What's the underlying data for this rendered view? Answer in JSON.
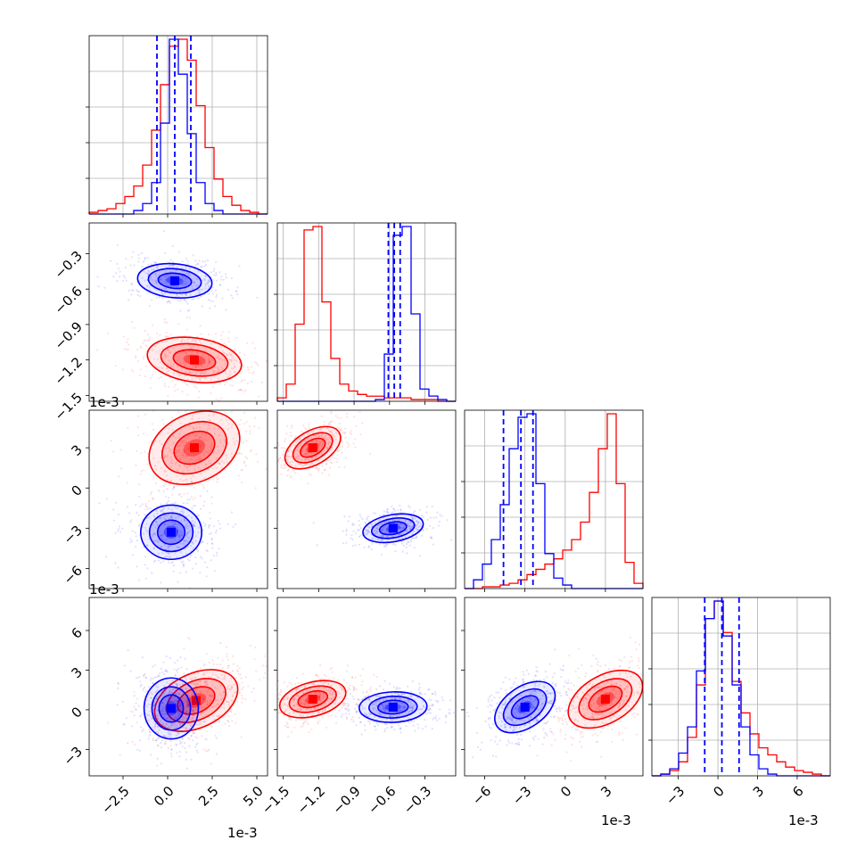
{
  "colors": {
    "red": "#ff0000",
    "blue": "#0000ff",
    "grid": "#b0b0b0"
  },
  "offset_labels": {
    "p2_y": "1e-3",
    "p3_y": "1e-3",
    "x0": "1e-3",
    "x2": "1e-3",
    "x3": "1e-3"
  },
  "chart_data": {
    "type": "corner",
    "title": "",
    "parameters": 4,
    "axes": [
      {
        "id": "p0",
        "scale_label": "1e-3",
        "lim": [
          -4.4,
          5.6
        ],
        "ticks": [
          -2.5,
          0.0,
          2.5,
          5.0
        ],
        "tick_labels": [
          "−2.5",
          "0.0",
          "2.5",
          "5.0"
        ]
      },
      {
        "id": "p1",
        "scale_label": "",
        "lim": [
          -1.55,
          -0.04
        ],
        "ticks": [
          -1.5,
          -1.2,
          -0.9,
          -0.6,
          -0.3
        ],
        "tick_labels": [
          "−1.5",
          "−1.2",
          "−0.9",
          "−0.6",
          "−0.3"
        ]
      },
      {
        "id": "p2",
        "scale_label": "1e-3",
        "lim": [
          -7.5,
          5.8
        ],
        "ticks": [
          -6,
          -3,
          0,
          3
        ],
        "tick_labels": [
          "−6",
          "−3",
          "0",
          "3"
        ]
      },
      {
        "id": "p3",
        "scale_label": "1e-3",
        "lim": [
          -5.0,
          8.5
        ],
        "ticks": [
          -3,
          0,
          3,
          6
        ],
        "tick_labels": [
          "−3",
          "0",
          "3",
          "6"
        ]
      }
    ],
    "series": [
      {
        "color": "#ff0000",
        "hist": [
          {
            "param": 0,
            "edges": [
              -4.4,
              5.6
            ],
            "counts": [
              1,
              2,
              3,
              6,
              10,
              16,
              28,
              48,
              74,
              96,
              100,
              88,
              62,
              38,
              20,
              10,
              5,
              2,
              1,
              0
            ]
          },
          {
            "param": 1,
            "edges": [
              -1.55,
              -0.04
            ],
            "counts": [
              2,
              10,
              45,
              100,
              102,
              58,
              25,
              10,
              6,
              4,
              3,
              3,
              2,
              2,
              2,
              1,
              1,
              1,
              0,
              0
            ]
          },
          {
            "param": 2,
            "edges": [
              -7.5,
              5.8
            ],
            "counts": [
              0,
              0,
              1,
              1,
              2,
              3,
              5,
              8,
              11,
              14,
              17,
              22,
              28,
              38,
              55,
              80,
              100,
              60,
              15,
              3
            ]
          },
          {
            "param": 3,
            "edges": [
              -5.0,
              8.5
            ],
            "counts": [
              0,
              1,
              3,
              8,
              22,
              52,
              90,
              100,
              82,
              54,
              36,
              24,
              16,
              12,
              8,
              5,
              3,
              2,
              1,
              0
            ]
          }
        ],
        "pairs": [
          {
            "x": 0,
            "y": 1,
            "peak": [
              1.5,
              -1.2
            ]
          },
          {
            "x": 0,
            "y": 2,
            "peak": [
              1.5,
              3.0
            ]
          },
          {
            "x": 1,
            "y": 2,
            "peak": [
              -1.25,
              3.0
            ]
          },
          {
            "x": 0,
            "y": 3,
            "peak": [
              1.6,
              0.7
            ]
          },
          {
            "x": 1,
            "y": 3,
            "peak": [
              -1.25,
              0.8
            ]
          },
          {
            "x": 2,
            "y": 3,
            "peak": [
              3.0,
              0.8
            ]
          }
        ]
      },
      {
        "color": "#0000ff",
        "quantiles": [
          [
            -0.6,
            0.4,
            1.3
          ],
          [
            -0.61,
            -0.56,
            -0.51
          ],
          [
            -4.6,
            -3.3,
            -2.4
          ],
          [
            -1.0,
            0.3,
            1.6
          ]
        ],
        "hist": [
          {
            "param": 0,
            "edges": [
              -4.4,
              5.6
            ],
            "counts": [
              0,
              0,
              0,
              0,
              0,
              2,
              6,
              18,
              52,
              100,
              80,
              46,
              18,
              6,
              2,
              0,
              0,
              0,
              0,
              0
            ]
          },
          {
            "param": 1,
            "edges": [
              -1.55,
              -0.04
            ],
            "counts": [
              0,
              0,
              0,
              0,
              0,
              0,
              0,
              0,
              0,
              0,
              0,
              1,
              27,
              95,
              100,
              50,
              7,
              3,
              1,
              0
            ]
          },
          {
            "param": 2,
            "edges": [
              -7.5,
              5.8
            ],
            "counts": [
              0,
              5,
              14,
              28,
              48,
              80,
              98,
              100,
              60,
              20,
              6,
              2,
              0,
              0,
              0,
              0,
              0,
              0,
              0,
              0
            ]
          },
          {
            "param": 3,
            "edges": [
              -5.0,
              8.5
            ],
            "counts": [
              0,
              1,
              4,
              13,
              28,
              60,
              90,
              100,
              80,
              52,
              28,
              12,
              4,
              1,
              0,
              0,
              0,
              0,
              0,
              0
            ]
          }
        ],
        "pairs": [
          {
            "x": 0,
            "y": 1,
            "peak": [
              0.4,
              -0.53
            ]
          },
          {
            "x": 0,
            "y": 2,
            "peak": [
              0.2,
              -3.3
            ]
          },
          {
            "x": 1,
            "y": 2,
            "peak": [
              -0.57,
              -3.0
            ]
          },
          {
            "x": 0,
            "y": 3,
            "peak": [
              0.2,
              0.1
            ]
          },
          {
            "x": 1,
            "y": 3,
            "peak": [
              -0.57,
              0.2
            ]
          },
          {
            "x": 2,
            "y": 3,
            "peak": [
              -3.0,
              0.2
            ]
          }
        ]
      }
    ]
  }
}
